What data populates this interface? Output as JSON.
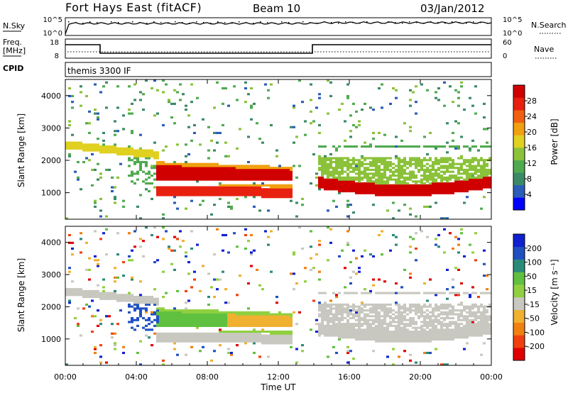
{
  "header": {
    "station": "Fort Hays East (fitACF)",
    "beam": "Beam 10",
    "date": "03/Jan/2012"
  },
  "panels": {
    "nsky": {
      "left_label": "N.Sky",
      "left_ticks": [
        "10^5",
        "10^0"
      ],
      "right_label": "N.Search",
      "right_ticks": [
        "10^5",
        "10^0"
      ]
    },
    "freq": {
      "left_label_1": "Freq.",
      "left_label_2": "[MHz]",
      "left_ticks": [
        "18",
        "8"
      ],
      "right_label": "Nave",
      "right_ticks": [
        "60",
        "0"
      ]
    },
    "cpid": {
      "label": "CPID",
      "program": "themis 3300 IF"
    }
  },
  "chart_data": [
    {
      "type": "heatmap",
      "name": "power",
      "ylabel": "Slant Range [km]",
      "y_ticks": [
        "1000",
        "2000",
        "3000",
        "4000"
      ],
      "colorbar_label": "Power [dB]",
      "colorbar_ticks": [
        "4",
        "8",
        "12",
        "16",
        "20",
        "24",
        "28"
      ],
      "palette": [
        "#0000ff",
        "#2a5db8",
        "#3b8a66",
        "#4faa4f",
        "#8bc23a",
        "#e0d020",
        "#f0a010",
        "#f06010",
        "#e82010",
        "#d00000"
      ],
      "ylim": [
        180,
        4500
      ]
    },
    {
      "type": "heatmap",
      "name": "velocity",
      "ylabel": "Slant Range [km]",
      "y_ticks": [
        "1000",
        "2000",
        "3000",
        "4000"
      ],
      "colorbar_label": "Velocity [m s⁻¹]",
      "colorbar_ticks": [
        "200",
        "100",
        "50",
        "15",
        "-15",
        "-50",
        "-100",
        "-200"
      ],
      "palette": [
        "#1020d0",
        "#2050c0",
        "#2a8a7a",
        "#60c040",
        "#90d040",
        "#c8c8c0",
        "#f0b030",
        "#f08010",
        "#f04010",
        "#e00000"
      ],
      "ylim": [
        180,
        4500
      ]
    }
  ],
  "xaxis": {
    "label": "Time UT",
    "ticks": [
      "00:00",
      "04:00",
      "08:00",
      "12:00",
      "16:00",
      "20:00",
      "00:00"
    ]
  },
  "colors": {
    "axes": "#000000",
    "background": "#ffffff"
  }
}
